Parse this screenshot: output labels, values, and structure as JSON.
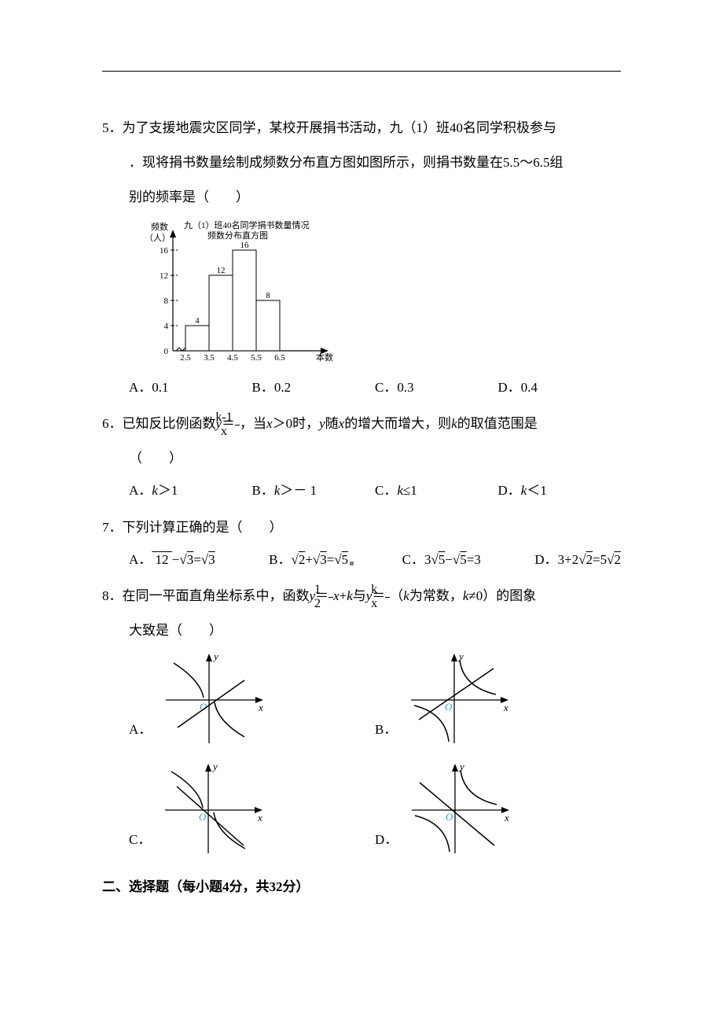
{
  "q5": {
    "num": "5．",
    "text_l1": "为了支援地震灾区同学，某校开展捐书活动，九（1）班40名同学积极参与",
    "text_l2": "．现将捐书数量绘制成频数分布直方图如图所示，则捐书数量在5.5～6.5组",
    "text_l3": "别的频率是（　　）",
    "chart": {
      "title_l1": "九（1）班40名同学捐书数量情况",
      "title_l2": "频数分布直方图",
      "y_label_l1": "频数",
      "y_label_l2": "（人）",
      "x_label": "本数",
      "y_ticks": [
        0,
        4,
        8,
        12,
        16
      ],
      "x_ticks": [
        "2.5",
        "3.5",
        "4.5",
        "5.5",
        "6.5"
      ],
      "bars": [
        {
          "value": 4,
          "label": "4"
        },
        {
          "value": 12,
          "label": "12"
        },
        {
          "value": 16,
          "label": "16"
        },
        {
          "value": 8,
          "label": "8"
        }
      ],
      "bar_fill": "#ffffff",
      "bar_stroke": "#000000",
      "axis_color": "#000000",
      "font_size_small": 11
    },
    "options": {
      "A": "A．0.1",
      "B": "B．0.2",
      "C": "C．0.3",
      "D": "D．0.4"
    }
  },
  "q6": {
    "num": "6．",
    "text_pre": "已知反比例函数",
    "frac_num": "k-1",
    "frac_den": "x",
    "text_mid": "，当",
    "text_post": "＞0时，",
    "text_end": "的增大而增大，则",
    "text_end2": "的取值范围是",
    "paren": "（　　）",
    "options": {
      "A": "A．",
      "B": "B．",
      "C": "C．",
      "D": "D．"
    },
    "opt_vals": {
      "A": "＞1",
      "B": "＞－ 1",
      "C": "≤1",
      "D": "＜1"
    }
  },
  "q7": {
    "num": "7．",
    "text": "下列计算正确的是（　　）",
    "options": {
      "A": "A．",
      "B": "B．",
      "C": "C．",
      "D": "D．"
    }
  },
  "q8": {
    "num": "8．",
    "text_pre": "在同一平面直角坐标系中，函数",
    "text_mid": "与",
    "text_paren_pre": "（",
    "text_paren_mid": "为常数，",
    "text_paren_post": "≠0）的图象",
    "text_l2": "大致是（　　）",
    "graphs": {
      "stroke": "#000000",
      "label_y": "y",
      "label_x": "x",
      "label_o": "O",
      "o_color": "#34a0c4"
    },
    "opt_labels": {
      "A": "A．",
      "B": "B．",
      "C": "C．",
      "D": "D．"
    }
  },
  "section2": "二、选择题（每小题4分，共32分）"
}
